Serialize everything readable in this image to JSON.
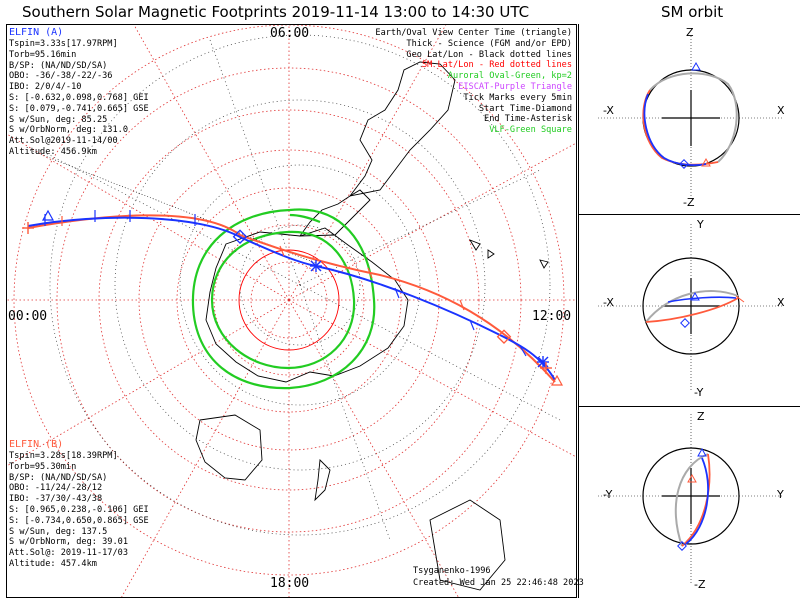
{
  "title": "Southern Solar Magnetic Footprints 2019-11-14 13:00 to 14:30 UTC",
  "orbit_title": "SM orbit",
  "map_labels": {
    "top": "06:00",
    "left": "00:00",
    "right": "12:00",
    "bottom": "18:00"
  },
  "elfin_a": {
    "name": "ELFIN (A)",
    "color": "#1a33ff",
    "lines": [
      "Tspin=3.33s[17.97RPM]",
      "Torb=95.16min",
      "B/SP: (NA/ND/SD/SA)",
      "OBO: -36/-38/-22/-36",
      "IBO: 2/0/4/-10",
      "S: [-0.632,0.098,0.768] GEI",
      "S: [0.079,-0.741,0.665] GSE",
      "S w/Sun, deg: 85.25",
      "S w/OrbNorm, deg: 131.0",
      "Att.Sol@2019-11-14/00",
      "Altitude: 456.9km"
    ]
  },
  "elfin_b": {
    "name": "ELFIN (B)",
    "color": "#ff5a3c",
    "lines": [
      "Tspin=3.28s[18.39RPM]",
      "Torb=95.30min",
      "B/SP: (NA/ND/SD/SA)",
      "OBO: -11/24/-28/12",
      "IBO: -37/30/-43/38",
      "S: [0.965,0.238,-0.106] GEI",
      "S: [-0.734,0.650,0.865] GSE",
      "S w/Sun, deg: 137.5",
      "S w/OrbNorm, deg: 39.01",
      "Att.Sol@: 2019-11-17/03",
      "Altitude: 457.4km"
    ]
  },
  "legend": [
    {
      "text": "Earth/Oval View Center Time (triangle)",
      "color": "#000000"
    },
    {
      "text": "Thick - Science (FGM and/or EPD)",
      "color": "#000000"
    },
    {
      "text": "Geo Lat/Lon - Black dotted lines",
      "color": "#000000"
    },
    {
      "text": "SM Lat/Lon - Red dotted lines",
      "color": "#ff0000"
    },
    {
      "text": "Auroral Oval-Green, kp=2",
      "color": "#22cc22"
    },
    {
      "text": "EISCAT-Purple Triangle",
      "color": "#cc44ff"
    },
    {
      "text": "Tick Marks every 5min",
      "color": "#000000"
    },
    {
      "text": "Start Time-Diamond",
      "color": "#000000"
    },
    {
      "text": "End Time-Asterisk",
      "color": "#000000"
    },
    {
      "text": "VLF-Green Square",
      "color": "#22cc22"
    }
  ],
  "footer": {
    "credit": "Tsyganenko-1996",
    "created": "Created: Wed Jan 25 22:46:48 2023"
  },
  "panels": [
    {
      "name": "xz",
      "top": "Z",
      "bottom": "-Z",
      "left": "-X",
      "right": "X"
    },
    {
      "name": "xy",
      "top": "Y",
      "bottom": "-Y",
      "left": "-X",
      "right": "X"
    },
    {
      "name": "yz",
      "top": "Z",
      "bottom": "-Z",
      "left": "-Y",
      "right": "Y"
    }
  ]
}
